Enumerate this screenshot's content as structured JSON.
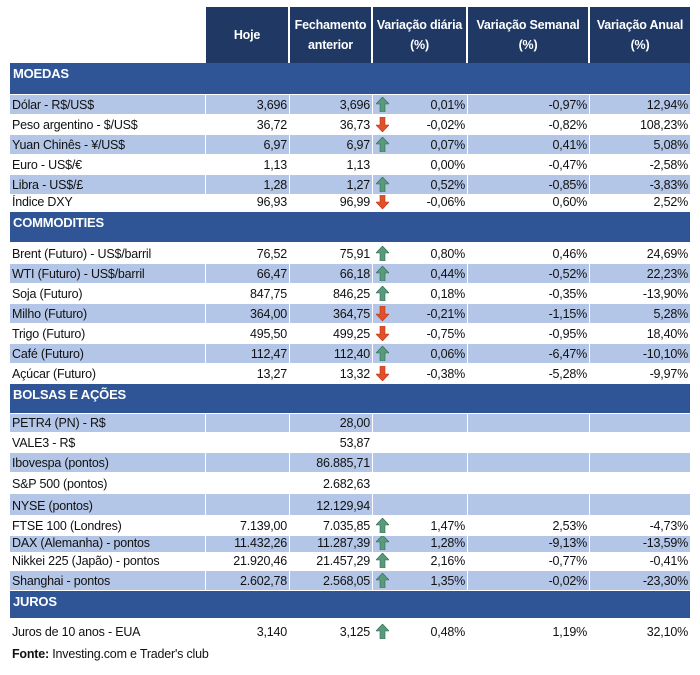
{
  "header": {
    "columns": [
      "",
      "Hoje",
      "Fechamento anterior",
      "Variação diária (%)",
      "Variação Semanal (%)",
      "Variação Anual (%)"
    ]
  },
  "colors": {
    "header_bg": "#1f3864",
    "section_bg": "#2f5597",
    "row_shade": "#b4c6e7",
    "up_arrow": "#5a9a7c",
    "down_arrow": "#e0502a"
  },
  "sections": [
    {
      "title": "MOEDAS",
      "rows": [
        {
          "name": "Dólar - R$/US$",
          "hoje": "3,696",
          "anterior": "3,696",
          "trend": "up",
          "diaria": "0,01%",
          "semanal": "-0,97%",
          "anual": "12,94%"
        },
        {
          "name": "Peso argentino - $/US$",
          "hoje": "36,72",
          "anterior": "36,73",
          "trend": "down",
          "diaria": "-0,02%",
          "semanal": "-0,82%",
          "anual": "108,23%"
        },
        {
          "name": "Yuan Chinês - ¥/US$",
          "hoje": "6,97",
          "anterior": "6,97",
          "trend": "up",
          "diaria": "0,07%",
          "semanal": "0,41%",
          "anual": "5,08%"
        },
        {
          "name": "Euro - US$/€",
          "hoje": "1,13",
          "anterior": "1,13",
          "trend": "",
          "diaria": "0,00%",
          "semanal": "-0,47%",
          "anual": "-2,58%"
        },
        {
          "name": "Libra - US$/£",
          "hoje": "1,28",
          "anterior": "1,27",
          "trend": "up",
          "diaria": "0,52%",
          "semanal": "-0,85%",
          "anual": "-3,83%"
        },
        {
          "name": "Índice DXY",
          "hoje": "96,93",
          "anterior": "96,99",
          "trend": "down",
          "diaria": "-0,06%",
          "semanal": "0,60%",
          "anual": "2,52%"
        }
      ]
    },
    {
      "title": "COMMODITIES",
      "rows": [
        {
          "name": "Brent (Futuro) - US$/barril",
          "hoje": "76,52",
          "anterior": "75,91",
          "trend": "up",
          "diaria": "0,80%",
          "semanal": "0,46%",
          "anual": "24,69%"
        },
        {
          "name": "WTI (Futuro) - US$/barril",
          "hoje": "66,47",
          "anterior": "66,18",
          "trend": "up",
          "diaria": "0,44%",
          "semanal": "-0,52%",
          "anual": "22,23%"
        },
        {
          "name": "Soja (Futuro)",
          "hoje": "847,75",
          "anterior": "846,25",
          "trend": "up",
          "diaria": "0,18%",
          "semanal": "-0,35%",
          "anual": "-13,90%"
        },
        {
          "name": "Milho (Futuro)",
          "hoje": "364,00",
          "anterior": "364,75",
          "trend": "down",
          "diaria": "-0,21%",
          "semanal": "-1,15%",
          "anual": "5,28%"
        },
        {
          "name": "Trigo (Futuro)",
          "hoje": "495,50",
          "anterior": "499,25",
          "trend": "down",
          "diaria": "-0,75%",
          "semanal": "-0,95%",
          "anual": "18,40%"
        },
        {
          "name": "Café (Futuro)",
          "hoje": "112,47",
          "anterior": "112,40",
          "trend": "up",
          "diaria": "0,06%",
          "semanal": "-6,47%",
          "anual": "-10,10%"
        },
        {
          "name": "Açúcar (Futuro)",
          "hoje": "13,27",
          "anterior": "13,32",
          "trend": "down",
          "diaria": "-0,38%",
          "semanal": "-5,28%",
          "anual": "-9,97%"
        }
      ]
    },
    {
      "title": "BOLSAS E AÇÕES",
      "rows": [
        {
          "name": "PETR4 (PN) - R$",
          "hoje": "",
          "anterior": "28,00",
          "trend": "",
          "diaria": "",
          "semanal": "",
          "anual": ""
        },
        {
          "name": "VALE3 - R$",
          "hoje": "",
          "anterior": "53,87",
          "trend": "",
          "diaria": "",
          "semanal": "",
          "anual": ""
        },
        {
          "name": "Ibovespa (pontos)",
          "hoje": "",
          "anterior": "86.885,71",
          "trend": "",
          "diaria": "",
          "semanal": "",
          "anual": ""
        },
        {
          "name": "S&P 500 (pontos)",
          "hoje": "",
          "anterior": "2.682,63",
          "trend": "",
          "diaria": "",
          "semanal": "",
          "anual": ""
        },
        {
          "name": "NYSE (pontos)",
          "hoje": "",
          "anterior": "12.129,94",
          "trend": "",
          "diaria": "",
          "semanal": "",
          "anual": ""
        },
        {
          "name": "FTSE 100 (Londres)",
          "hoje": "7.139,00",
          "anterior": "7.035,85",
          "trend": "up",
          "diaria": "1,47%",
          "semanal": "2,53%",
          "anual": "-4,73%"
        },
        {
          "name": "DAX (Alemanha) - pontos",
          "hoje": "11.432,26",
          "anterior": "11.287,39",
          "trend": "up",
          "diaria": "1,28%",
          "semanal": "-9,13%",
          "anual": "-13,59%"
        },
        {
          "name": "Nikkei 225 (Japão) - pontos",
          "hoje": "21.920,46",
          "anterior": "21.457,29",
          "trend": "up",
          "diaria": "2,16%",
          "semanal": "-0,77%",
          "anual": "-0,41%"
        },
        {
          "name": "Shanghai - pontos",
          "hoje": "2.602,78",
          "anterior": "2.568,05",
          "trend": "up",
          "diaria": "1,35%",
          "semanal": "-0,02%",
          "anual": "-23,30%"
        }
      ]
    },
    {
      "title": "JUROS",
      "rows": [
        {
          "name": "Juros de 10 anos - EUA",
          "hoje": "3,140",
          "anterior": "3,125",
          "trend": "up",
          "diaria": "0,48%",
          "semanal": "1,19%",
          "anual": "32,10%"
        }
      ]
    }
  ],
  "footer": {
    "label": "Fonte:",
    "text": " Investing.com e Trader's club"
  }
}
